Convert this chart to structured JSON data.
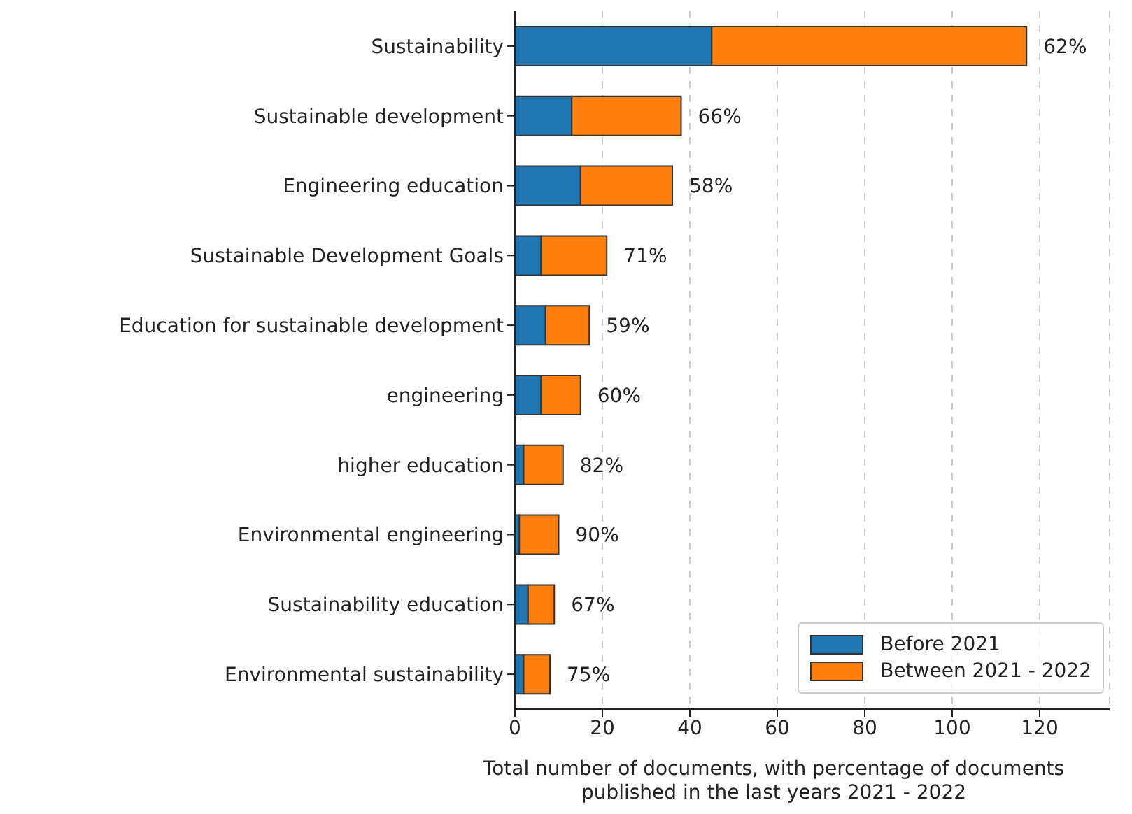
{
  "chart_data": {
    "type": "bar",
    "orientation": "horizontal",
    "stacked": true,
    "xlabel": "Total number of documents, with percentage of documents\npublished in the last years 2021 - 2022",
    "categories": [
      "Sustainability",
      "Sustainable development",
      "Engineering education",
      "Sustainable Development Goals",
      "Education for sustainable development",
      "engineering",
      "higher education",
      "Environmental engineering",
      "Sustainability education",
      "Environmental sustainability"
    ],
    "series": [
      {
        "name": "Before 2021",
        "color": "#1f77b4",
        "values": [
          45,
          13,
          15,
          6,
          7,
          6,
          2,
          1,
          3,
          2
        ]
      },
      {
        "name": "Between 2021 - 2022",
        "color": "#ff7f0e",
        "values": [
          72,
          25,
          21,
          15,
          10,
          9,
          9,
          9,
          6,
          6
        ]
      }
    ],
    "annotations": [
      {
        "text": "62%",
        "x": 117,
        "y": "Sustainability"
      },
      {
        "text": "66%",
        "x": 38,
        "y": "Sustainable development"
      },
      {
        "text": "58%",
        "x": 36,
        "y": "Engineering education"
      },
      {
        "text": "71%",
        "x": 21,
        "y": "Sustainable Development Goals"
      },
      {
        "text": "59%",
        "x": 17,
        "y": "Education for sustainable development"
      },
      {
        "text": "60%",
        "x": 15,
        "y": "engineering"
      },
      {
        "text": "82%",
        "x": 11,
        "y": "higher education"
      },
      {
        "text": "90%",
        "x": 10,
        "y": "Environmental engineering"
      },
      {
        "text": "67%",
        "x": 9,
        "y": "Sustainability education"
      },
      {
        "text": "75%",
        "x": 8,
        "y": "Environmental sustainability"
      }
    ],
    "xlim": [
      0,
      136
    ],
    "xticks": [
      0,
      20,
      40,
      60,
      80,
      100,
      120
    ],
    "grid": "x",
    "legend": "bottom right"
  }
}
